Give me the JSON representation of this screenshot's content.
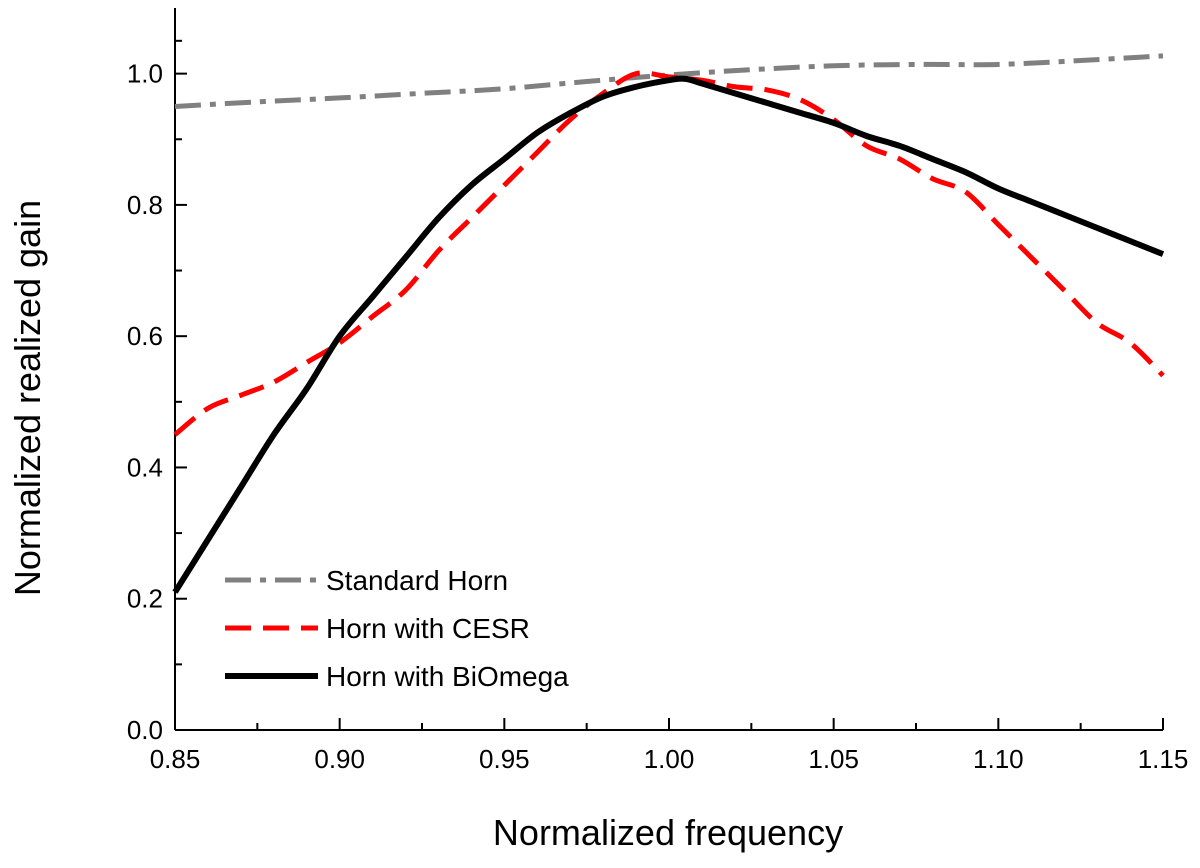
{
  "chart_data": {
    "type": "line",
    "title": "",
    "xlabel": "Normalized frequency",
    "ylabel": "Normalized realized gain",
    "xlim": [
      0.85,
      1.15
    ],
    "ylim": [
      0.0,
      1.1
    ],
    "x_ticks": [
      "0.85",
      "0.90",
      "0.95",
      "1.00",
      "1.05",
      "1.10",
      "1.15"
    ],
    "y_ticks": [
      "0.0",
      "0.2",
      "0.4",
      "0.6",
      "0.8",
      "1.0"
    ],
    "x_tick_values": [
      0.85,
      0.9,
      0.95,
      1.0,
      1.05,
      1.1,
      1.15
    ],
    "y_tick_values": [
      0.0,
      0.2,
      0.4,
      0.6,
      0.8,
      1.0
    ],
    "grid": false,
    "legend_position": "bottom-left",
    "series": [
      {
        "name": "Standard Horn",
        "color": "#808080",
        "style": "dash-dot",
        "x": [
          0.85,
          0.875,
          0.9,
          0.925,
          0.95,
          0.975,
          1.0,
          1.025,
          1.05,
          1.075,
          1.1,
          1.125,
          1.15
        ],
        "y": [
          0.95,
          0.957,
          0.963,
          0.97,
          0.977,
          0.988,
          0.998,
          1.006,
          1.012,
          1.014,
          1.014,
          1.02,
          1.027
        ]
      },
      {
        "name": "Horn with CESR",
        "color": "#ff0000",
        "style": "dashed",
        "x": [
          0.85,
          0.86,
          0.87,
          0.88,
          0.89,
          0.9,
          0.91,
          0.92,
          0.93,
          0.94,
          0.95,
          0.96,
          0.97,
          0.98,
          0.99,
          1.0,
          1.01,
          1.02,
          1.03,
          1.04,
          1.05,
          1.06,
          1.07,
          1.08,
          1.09,
          1.1,
          1.11,
          1.12,
          1.13,
          1.14,
          1.15
        ],
        "y": [
          0.45,
          0.49,
          0.51,
          0.53,
          0.56,
          0.59,
          0.63,
          0.67,
          0.73,
          0.78,
          0.83,
          0.88,
          0.93,
          0.97,
          1.0,
          0.995,
          0.99,
          0.98,
          0.975,
          0.96,
          0.93,
          0.89,
          0.87,
          0.84,
          0.82,
          0.77,
          0.72,
          0.67,
          0.62,
          0.59,
          0.54
        ]
      },
      {
        "name": "Horn with BiOmega",
        "color": "#000000",
        "style": "solid",
        "x": [
          0.85,
          0.86,
          0.87,
          0.88,
          0.89,
          0.9,
          0.91,
          0.92,
          0.93,
          0.94,
          0.95,
          0.96,
          0.97,
          0.98,
          0.99,
          1.0,
          1.005,
          1.01,
          1.02,
          1.03,
          1.04,
          1.05,
          1.06,
          1.07,
          1.08,
          1.09,
          1.1,
          1.11,
          1.12,
          1.13,
          1.14,
          1.15
        ],
        "y": [
          0.21,
          0.29,
          0.37,
          0.45,
          0.52,
          0.6,
          0.66,
          0.72,
          0.78,
          0.83,
          0.87,
          0.91,
          0.94,
          0.965,
          0.98,
          0.99,
          0.992,
          0.985,
          0.97,
          0.955,
          0.94,
          0.925,
          0.905,
          0.89,
          0.87,
          0.85,
          0.825,
          0.805,
          0.785,
          0.765,
          0.745,
          0.725
        ]
      }
    ]
  }
}
